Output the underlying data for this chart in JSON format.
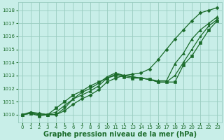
{
  "background_color": "#c8eee8",
  "grid_color": "#99ccc0",
  "line_color": "#1a6b2a",
  "marker_color": "#1a6b2a",
  "xlabel": "Graphe pression niveau de la mer (hPa)",
  "xlabel_fontsize": 7,
  "xlim": [
    -0.5,
    23.5
  ],
  "ylim": [
    1009.4,
    1018.6
  ],
  "yticks": [
    1010,
    1011,
    1012,
    1013,
    1014,
    1015,
    1016,
    1017,
    1018
  ],
  "xticks": [
    0,
    1,
    2,
    3,
    4,
    5,
    6,
    7,
    8,
    9,
    10,
    11,
    12,
    13,
    14,
    15,
    16,
    17,
    18,
    19,
    20,
    21,
    22,
    23
  ],
  "series": [
    {
      "x": [
        0,
        1,
        2,
        3,
        4,
        5,
        6,
        7,
        8,
        9,
        10,
        11,
        12,
        13,
        14,
        15,
        16,
        17,
        18,
        19,
        20,
        21,
        22,
        23
      ],
      "y": [
        1010.0,
        1010.1,
        1010.1,
        1010.0,
        1010.0,
        1010.3,
        1010.8,
        1011.2,
        1011.5,
        1011.9,
        1012.5,
        1012.8,
        1013.0,
        1013.1,
        1013.2,
        1013.5,
        1014.2,
        1015.0,
        1015.8,
        1016.5,
        1017.2,
        1017.8,
        1018.0,
        1018.2
      ],
      "marker": "D",
      "markersize": 2.5,
      "linewidth": 0.9
    },
    {
      "x": [
        0,
        1,
        2,
        3,
        4,
        5,
        6,
        7,
        8,
        9,
        10,
        11,
        12,
        13,
        14,
        15,
        16,
        17,
        18,
        19,
        20,
        21,
        22,
        23
      ],
      "y": [
        1010.0,
        1010.1,
        1010.0,
        1010.0,
        1010.2,
        1010.7,
        1011.2,
        1011.5,
        1011.8,
        1012.2,
        1012.8,
        1013.1,
        1013.0,
        1012.9,
        1012.8,
        1012.7,
        1012.6,
        1012.6,
        1013.9,
        1014.7,
        1015.8,
        1016.5,
        1017.0,
        1017.5
      ],
      "marker": "^",
      "markersize": 3.0,
      "linewidth": 0.9
    },
    {
      "x": [
        0,
        1,
        2,
        3,
        4,
        5,
        6,
        7,
        8,
        9,
        10,
        11,
        12,
        13,
        14,
        15,
        16,
        17,
        18,
        19,
        20,
        21,
        22,
        23
      ],
      "y": [
        1010.0,
        1010.1,
        1009.9,
        1010.0,
        1010.5,
        1011.0,
        1011.5,
        1011.8,
        1012.2,
        1012.5,
        1012.8,
        1013.0,
        1012.9,
        1012.8,
        1012.8,
        1012.7,
        1012.5,
        1012.5,
        1012.5,
        1013.8,
        1014.5,
        1015.5,
        1016.5,
        1017.2
      ],
      "marker": "s",
      "markersize": 2.5,
      "linewidth": 0.9
    },
    {
      "x": [
        0,
        1,
        2,
        3,
        4,
        5,
        6,
        7,
        8,
        9,
        10,
        11,
        12,
        13,
        14,
        15,
        16,
        17,
        18,
        19,
        20,
        21,
        22,
        23
      ],
      "y": [
        1010.0,
        1010.2,
        1010.1,
        1010.0,
        1010.0,
        1010.5,
        1011.2,
        1011.7,
        1012.0,
        1012.4,
        1012.9,
        1013.2,
        1013.0,
        1012.9,
        1012.8,
        1012.7,
        1012.5,
        1012.5,
        1013.0,
        1014.0,
        1015.0,
        1016.0,
        1016.8,
        1017.3
      ],
      "marker": "o",
      "markersize": 2.0,
      "linewidth": 0.9
    }
  ]
}
